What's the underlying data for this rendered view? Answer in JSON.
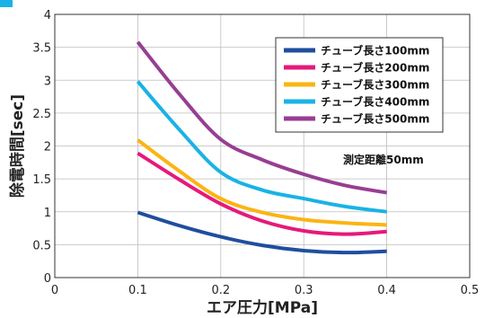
{
  "chart_data": {
    "type": "line",
    "title": "",
    "xlabel": "エア圧力[MPa]",
    "ylabel": "除電時間[sec]",
    "xlim": [
      0,
      0.5
    ],
    "ylim": [
      0,
      4
    ],
    "x_ticks": [
      "0",
      "0.1",
      "0.2",
      "0.3",
      "0.4",
      "0.5"
    ],
    "y_ticks": [
      "0",
      "0.5",
      "1",
      "1.5",
      "2",
      "2.5",
      "3",
      "3.5",
      "4"
    ],
    "grid": true,
    "legend_position": "top-right",
    "annotation": "測定距離50mm",
    "series": [
      {
        "name": "チューブ長さ100mm",
        "color": "#1f4e9e",
        "points": [
          [
            0.1,
            0.99
          ],
          [
            0.15,
            0.79
          ],
          [
            0.2,
            0.62
          ],
          [
            0.25,
            0.49
          ],
          [
            0.3,
            0.41
          ],
          [
            0.35,
            0.38
          ],
          [
            0.4,
            0.4
          ]
        ]
      },
      {
        "name": "チューブ長さ200mm",
        "color": "#e6197a",
        "points": [
          [
            0.1,
            1.89
          ],
          [
            0.15,
            1.49
          ],
          [
            0.2,
            1.12
          ],
          [
            0.25,
            0.86
          ],
          [
            0.3,
            0.71
          ],
          [
            0.35,
            0.66
          ],
          [
            0.4,
            0.7
          ]
        ]
      },
      {
        "name": "チューブ長さ300mm",
        "color": "#fbb414",
        "points": [
          [
            0.1,
            2.09
          ],
          [
            0.15,
            1.62
          ],
          [
            0.2,
            1.2
          ],
          [
            0.25,
            0.99
          ],
          [
            0.3,
            0.88
          ],
          [
            0.35,
            0.83
          ],
          [
            0.4,
            0.8
          ]
        ]
      },
      {
        "name": "チューブ長さ400mm",
        "color": "#1ab2e6",
        "points": [
          [
            0.1,
            2.98
          ],
          [
            0.15,
            2.25
          ],
          [
            0.2,
            1.6
          ],
          [
            0.25,
            1.33
          ],
          [
            0.3,
            1.2
          ],
          [
            0.35,
            1.08
          ],
          [
            0.4,
            1.0
          ]
        ]
      },
      {
        "name": "チューブ長さ500mm",
        "color": "#973e93",
        "points": [
          [
            0.1,
            3.58
          ],
          [
            0.15,
            2.79
          ],
          [
            0.2,
            2.1
          ],
          [
            0.25,
            1.79
          ],
          [
            0.3,
            1.57
          ],
          [
            0.35,
            1.4
          ],
          [
            0.4,
            1.29
          ]
        ]
      }
    ]
  }
}
